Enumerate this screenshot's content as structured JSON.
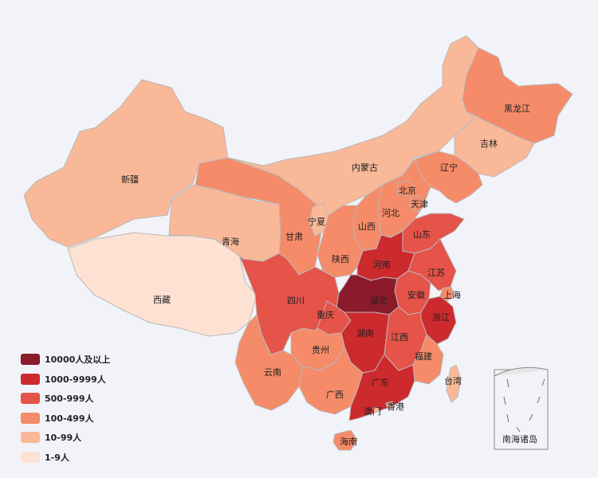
{
  "legend": [
    {
      "label": "10000人及以上",
      "color": "#8b1a2b"
    },
    {
      "label": "1000-9999人",
      "color": "#cd2a2e"
    },
    {
      "label": "500-999人",
      "color": "#e55349"
    },
    {
      "label": "100-499人",
      "color": "#f58b68"
    },
    {
      "label": "10-99人",
      "color": "#f9b898"
    },
    {
      "label": "1-9人",
      "color": "#fde2d3"
    }
  ],
  "provinces": [
    {
      "key": "xinjiang",
      "name": "新疆",
      "tier": 4
    },
    {
      "key": "xizang",
      "name": "西藏",
      "tier": 5
    },
    {
      "key": "qinghai",
      "name": "青海",
      "tier": 4
    },
    {
      "key": "gansu",
      "name": "甘肃",
      "tier": 3
    },
    {
      "key": "neimenggu",
      "name": "内蒙古",
      "tier": 4
    },
    {
      "key": "heilongjiang",
      "name": "黑龙江",
      "tier": 3
    },
    {
      "key": "jilin",
      "name": "吉林",
      "tier": 4
    },
    {
      "key": "liaoning",
      "name": "辽宁",
      "tier": 3
    },
    {
      "key": "beijing",
      "name": "北京",
      "tier": 3
    },
    {
      "key": "tianjin",
      "name": "天津",
      "tier": 3
    },
    {
      "key": "hebei",
      "name": "河北",
      "tier": 3
    },
    {
      "key": "shanxi",
      "name": "山西",
      "tier": 3
    },
    {
      "key": "ningxia",
      "name": "宁夏",
      "tier": 4
    },
    {
      "key": "shaanxi",
      "name": "陕西",
      "tier": 3
    },
    {
      "key": "shandong",
      "name": "山东",
      "tier": 2
    },
    {
      "key": "henan",
      "name": "河南",
      "tier": 1
    },
    {
      "key": "jiangsu",
      "name": "江苏",
      "tier": 2
    },
    {
      "key": "anhui",
      "name": "安徽",
      "tier": 2
    },
    {
      "key": "shanghai",
      "name": "上海",
      "tier": 3
    },
    {
      "key": "hubei",
      "name": "湖北",
      "tier": 0
    },
    {
      "key": "sichuan",
      "name": "四川",
      "tier": 2
    },
    {
      "key": "chongqing",
      "name": "重庆",
      "tier": 2
    },
    {
      "key": "zhejiang",
      "name": "浙江",
      "tier": 1
    },
    {
      "key": "hunan",
      "name": "湖南",
      "tier": 1
    },
    {
      "key": "jiangxi",
      "name": "江西",
      "tier": 2
    },
    {
      "key": "guizhou",
      "name": "贵州",
      "tier": 3
    },
    {
      "key": "yunnan",
      "name": "云南",
      "tier": 3
    },
    {
      "key": "fujian",
      "name": "福建",
      "tier": 3
    },
    {
      "key": "guangxi",
      "name": "广西",
      "tier": 3
    },
    {
      "key": "guangdong",
      "name": "广东",
      "tier": 1
    },
    {
      "key": "taiwan",
      "name": "台湾",
      "tier": 4
    },
    {
      "key": "xianggang",
      "name": "香港",
      "tier": 4
    },
    {
      "key": "aomen",
      "name": "澳门",
      "tier": 4
    },
    {
      "key": "hainan",
      "name": "海南",
      "tier": 3
    }
  ],
  "inset": {
    "label": "南海诸岛"
  }
}
